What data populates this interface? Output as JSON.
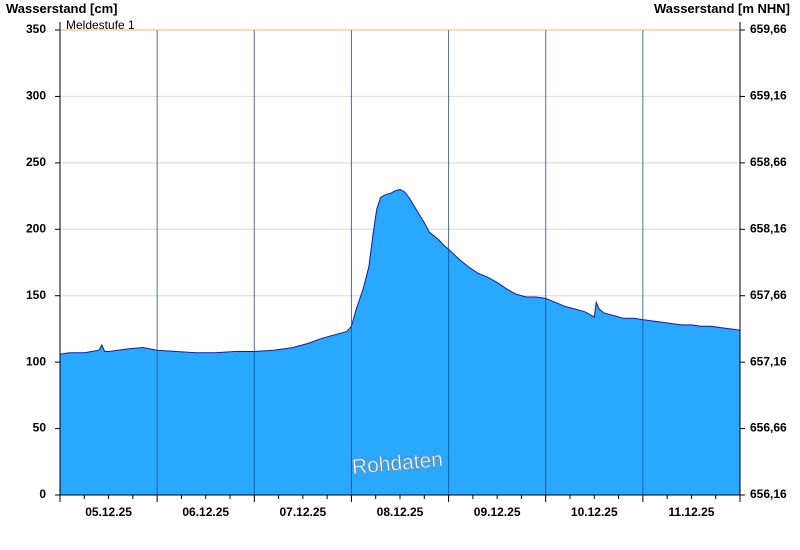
{
  "chart_data": {
    "type": "area",
    "left_axis_title": "Wasserstand [cm]",
    "right_axis_title": "Wasserstand [m NHN]",
    "x_tick_labels": [
      "05.12.25",
      "06.12.25",
      "07.12.25",
      "08.12.25",
      "09.12.25",
      "10.12.25",
      "11.12.25"
    ],
    "x_range_days": [
      0,
      7
    ],
    "ylim": [
      0,
      350
    ],
    "y_ticks": [
      0,
      50,
      100,
      150,
      200,
      250,
      300,
      350
    ],
    "right_ticks": [
      "656,16",
      "656,66",
      "657,16",
      "657,66",
      "658,16",
      "658,66",
      "659,16",
      "659,66"
    ],
    "threshold": {
      "label": "Meldestufe 1",
      "value": 350,
      "color": "#f5c040"
    },
    "watermark": "Rohdaten",
    "fill_color": "#29a8ff",
    "line_color": "#1a1aa0",
    "grid": true,
    "series": [
      {
        "x": [
          0.0,
          0.1,
          0.25,
          0.4,
          0.43,
          0.46,
          0.5,
          0.7,
          0.85,
          1.0,
          1.2,
          1.4,
          1.6,
          1.8,
          2.0,
          2.2,
          2.4,
          2.55,
          2.7,
          2.85,
          2.95,
          3.0,
          3.05,
          3.12,
          3.18,
          3.22,
          3.26,
          3.3,
          3.35,
          3.4,
          3.45,
          3.5,
          3.55,
          3.6,
          3.65,
          3.7,
          3.75,
          3.8,
          3.85,
          3.9,
          3.95,
          4.0,
          4.1,
          4.2,
          4.3,
          4.4,
          4.5,
          4.6,
          4.7,
          4.8,
          4.9,
          5.0,
          5.1,
          5.2,
          5.3,
          5.4,
          5.5,
          5.52,
          5.55,
          5.6,
          5.7,
          5.8,
          5.9,
          6.0,
          6.1,
          6.2,
          6.3,
          6.4,
          6.5,
          6.6,
          6.7,
          6.8,
          6.9,
          7.0
        ],
        "y": [
          106,
          107,
          107,
          109,
          113,
          108,
          108,
          110,
          111,
          109,
          108,
          107,
          107,
          108,
          108,
          109,
          111,
          114,
          118,
          121,
          123,
          127,
          140,
          155,
          172,
          195,
          215,
          224,
          226,
          227,
          229,
          230,
          228,
          223,
          217,
          211,
          205,
          198,
          195,
          192,
          188,
          185,
          178,
          172,
          167,
          164,
          160,
          155,
          151,
          149,
          149,
          148,
          145,
          142,
          140,
          138,
          134,
          145,
          140,
          137,
          135,
          133,
          133,
          132,
          131,
          130,
          129,
          128,
          128,
          127,
          127,
          126,
          125,
          124
        ]
      }
    ]
  }
}
